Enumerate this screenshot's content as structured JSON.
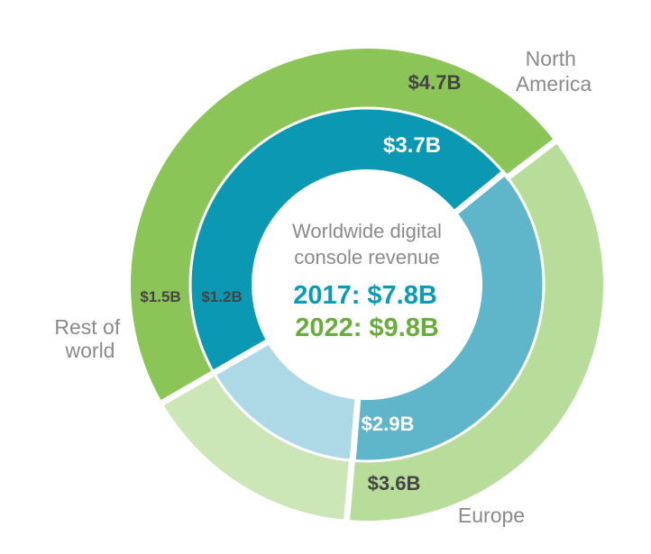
{
  "chart_data": {
    "type": "pie",
    "center_title_lines": [
      "Worldwide digital",
      "console revenue"
    ],
    "totals": [
      {
        "year": "2017",
        "text": "2017: $7.8B",
        "color": "#0b9bb4"
      },
      {
        "year": "2022",
        "text": "2022: $9.8B",
        "color": "#6aac3b"
      }
    ],
    "region_names": [
      [
        "North",
        "America"
      ],
      [
        "Europe"
      ],
      [
        "Rest of",
        "world"
      ]
    ],
    "outer_ring": {
      "series": "2022",
      "values": [
        4.7,
        3.6,
        1.5
      ],
      "value_labels": [
        "$4.7B",
        "$3.6B",
        "$1.5B"
      ],
      "colors": [
        "#8bc457",
        "#b8dc9a",
        "#cde6b8"
      ]
    },
    "inner_ring": {
      "series": "2017",
      "values": [
        3.7,
        2.9,
        1.2
      ],
      "value_labels": [
        "$3.7B",
        "$2.9B",
        "$1.2B"
      ],
      "colors": [
        "#0b98b3",
        "#5fb6cb",
        "#acd9e5"
      ]
    }
  }
}
